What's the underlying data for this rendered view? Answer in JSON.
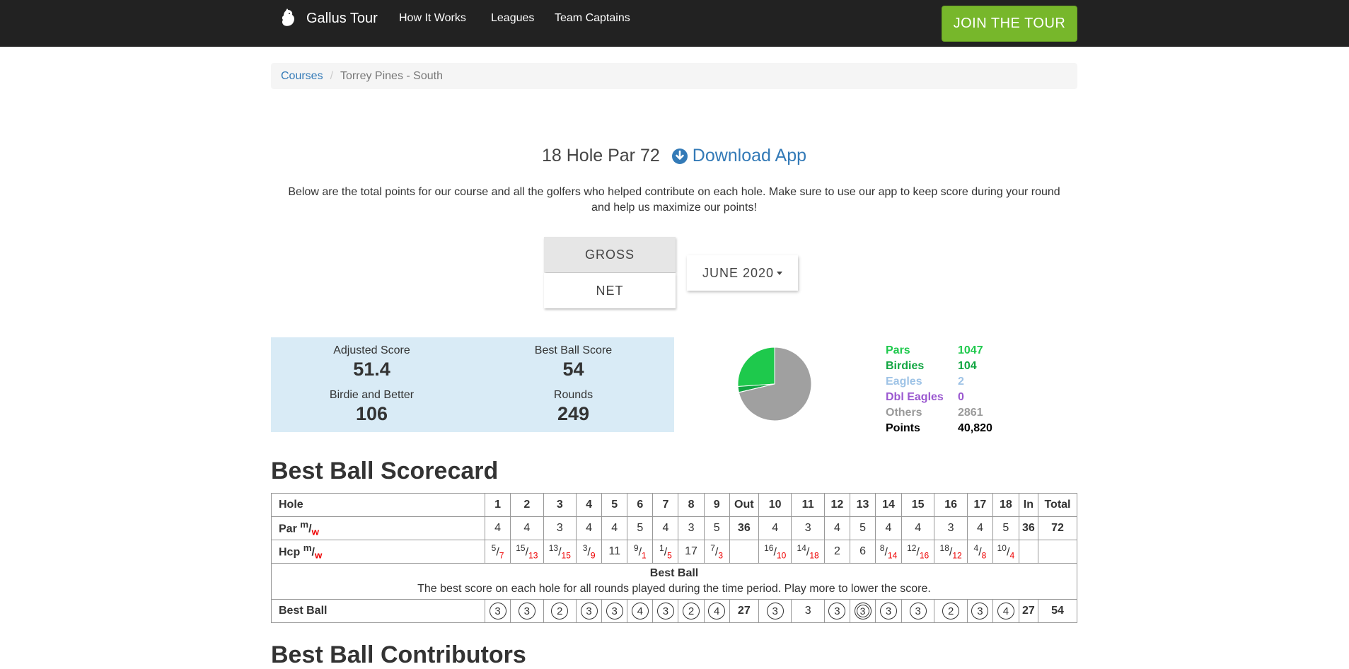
{
  "nav": {
    "brand": "Gallus Tour",
    "links": [
      "How It Works",
      "Leagues",
      "Team Captains"
    ],
    "join": "JOIN THE TOUR"
  },
  "breadcrumb": {
    "courses": "Courses",
    "current": "Torrey Pines - South"
  },
  "header": {
    "par": "18 Hole Par 72",
    "download": "Download App"
  },
  "description": "Below are the total points for our course and all the golfers who helped contribute on each hole. Make sure to use our app to keep score during your round and help us maximize our points!",
  "toggles": {
    "gross": "GROSS",
    "net": "NET",
    "month": "JUNE 2020"
  },
  "stats": {
    "adjusted_label": "Adjusted Score",
    "adjusted_value": "51.4",
    "bestball_label": "Best Ball Score",
    "bestball_value": "54",
    "birdie_label": "Birdie and Better",
    "birdie_value": "106",
    "rounds_label": "Rounds",
    "rounds_value": "249"
  },
  "legend": [
    {
      "name": "Pars",
      "value": "1047",
      "color": "#1ec94c"
    },
    {
      "name": "Birdies",
      "value": "104",
      "color": "#12a642"
    },
    {
      "name": "Eagles",
      "value": "2",
      "color": "#9ec3e6"
    },
    {
      "name": "Dbl Eagles",
      "value": "0",
      "color": "#9b59d0"
    },
    {
      "name": "Others",
      "value": "2861",
      "color": "#9a9a9a"
    },
    {
      "name": "Points",
      "value": "40,820",
      "color": "#000000"
    }
  ],
  "chart_data": {
    "type": "pie",
    "categories": [
      "Pars",
      "Birdies",
      "Eagles",
      "Dbl Eagles",
      "Others"
    ],
    "values": [
      1047,
      104,
      2,
      0,
      2861
    ],
    "colors": [
      "#1ec94c",
      "#12a642",
      "#9ec3e6",
      "#9b59d0",
      "#a0a0a0"
    ]
  },
  "scorecard": {
    "title": "Best Ball Scorecard",
    "hole_label": "Hole",
    "holes_front": [
      "1",
      "2",
      "3",
      "4",
      "5",
      "6",
      "7",
      "8",
      "9"
    ],
    "out_label": "Out",
    "holes_back": [
      "10",
      "11",
      "12",
      "13",
      "14",
      "15",
      "16",
      "17",
      "18"
    ],
    "in_label": "In",
    "total_label": "Total",
    "par_label": "Par",
    "par_front": [
      "4",
      "4",
      "3",
      "4",
      "4",
      "5",
      "4",
      "3",
      "5"
    ],
    "par_out": "36",
    "par_back": [
      "4",
      "3",
      "4",
      "5",
      "4",
      "4",
      "3",
      "4",
      "5"
    ],
    "par_in": "36",
    "par_total": "72",
    "hcp_label": "Hcp",
    "hcp_front": [
      [
        "5",
        "7"
      ],
      [
        "15",
        "13"
      ],
      [
        "13",
        "15"
      ],
      [
        "3",
        "9"
      ],
      [
        "11",
        ""
      ],
      [
        "9",
        "1"
      ],
      [
        "1",
        "5"
      ],
      [
        "17",
        ""
      ],
      [
        "7",
        "3"
      ]
    ],
    "hcp_back": [
      [
        "16",
        "10"
      ],
      [
        "14",
        "18"
      ],
      [
        "2",
        ""
      ],
      [
        "6",
        ""
      ],
      [
        "8",
        "14"
      ],
      [
        "12",
        "16"
      ],
      [
        "18",
        "12"
      ],
      [
        "4",
        "8"
      ],
      [
        "10",
        "4"
      ]
    ],
    "m": "m",
    "w": "w",
    "note_title": "Best Ball",
    "note_text": "The best score on each hole for all rounds played during the time period. Play more to lower the score.",
    "bestball_label": "Best Ball",
    "bb_front": [
      [
        "3",
        "c"
      ],
      [
        "3",
        "c"
      ],
      [
        "2",
        "c"
      ],
      [
        "3",
        "c"
      ],
      [
        "3",
        "c"
      ],
      [
        "4",
        "c"
      ],
      [
        "3",
        "c"
      ],
      [
        "2",
        "c"
      ],
      [
        "4",
        "c"
      ]
    ],
    "bb_out": "27",
    "bb_back": [
      [
        "3",
        "c"
      ],
      [
        "3",
        ""
      ],
      [
        "3",
        "c"
      ],
      [
        "3",
        "d"
      ],
      [
        "3",
        "c"
      ],
      [
        "3",
        "c"
      ],
      [
        "2",
        "c"
      ],
      [
        "3",
        "c"
      ],
      [
        "4",
        "c"
      ]
    ],
    "bb_in": "27",
    "bb_total": "54"
  },
  "contributors_title": "Best Ball Contributors"
}
